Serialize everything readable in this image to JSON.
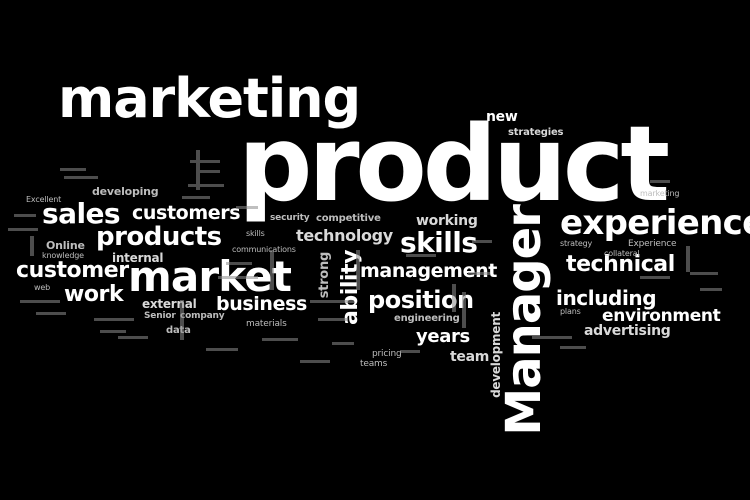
{
  "background_color": "#000000",
  "text_color": "#ffffff",
  "words": {
    "marketing": "marketing",
    "product": "product",
    "manager": "Manager",
    "market": "market",
    "experience": "experience",
    "sales": "sales",
    "products": "products",
    "customers": "customers",
    "customer": "customer",
    "work": "work",
    "skills": "skills",
    "technical": "technical",
    "management": "management",
    "position": "position",
    "business": "business",
    "including": "including",
    "technology": "technology",
    "ability": "ability",
    "environment": "environment",
    "advertising": "advertising",
    "years": "years",
    "team": "team",
    "new": "new",
    "strategies": "strategies",
    "internal": "internal",
    "external": "external",
    "working": "working",
    "competitive": "competitive",
    "development": "development",
    "developing": "developing",
    "strong": "strong",
    "online": "Online",
    "senior": "Senior",
    "company": "company",
    "data": "data",
    "engineering": "engineering",
    "security": "security",
    "experience_small": "Experience",
    "communications": "communications",
    "knowledge": "knowledge",
    "excellent": "Excellent",
    "pricing": "pricing",
    "teams": "teams",
    "collateral": "collateral",
    "marketing_small": "marketing",
    "strategy": "strategy",
    "skills_small": "skills",
    "plans": "plans",
    "web": "web",
    "materials": "materials"
  }
}
